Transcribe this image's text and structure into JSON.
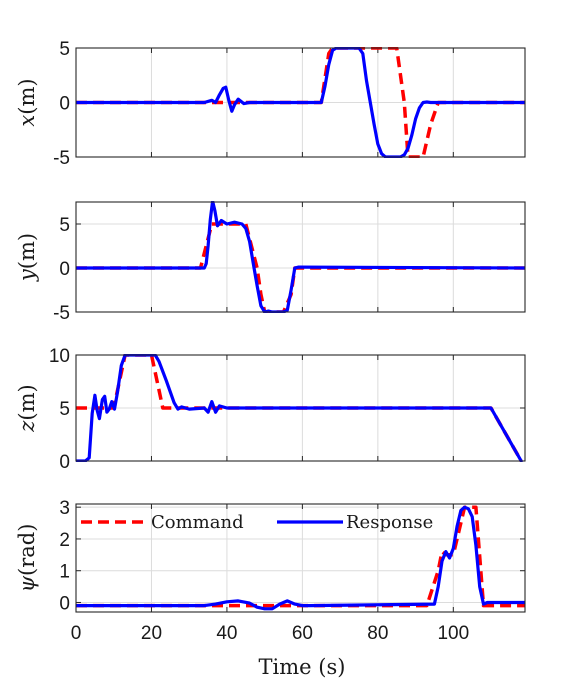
{
  "chart_data": [
    {
      "type": "line",
      "ylabel_var": "x",
      "ylabel_unit": "(m)",
      "xlim": [
        0,
        119
      ],
      "ylim": [
        -5,
        5
      ],
      "yticks": [
        -5,
        0,
        5
      ],
      "ytick_labels": [
        "-5",
        "0",
        "5"
      ],
      "xticks": [
        0,
        20,
        40,
        60,
        80,
        100
      ],
      "grid": true,
      "series": [
        {
          "name": "Command",
          "color": "#ff0000",
          "style": "dashed",
          "x": [
            0,
            65,
            67,
            68,
            85,
            87,
            88,
            92,
            94,
            96,
            119
          ],
          "y": [
            0,
            0,
            4.5,
            5,
            5,
            0,
            -5,
            -5,
            -2,
            0,
            0
          ]
        },
        {
          "name": "Response",
          "color": "#0000ff",
          "style": "solid",
          "x": [
            0,
            34,
            36,
            37,
            38,
            39,
            39.7,
            40.5,
            41.3,
            42,
            43,
            44.5,
            46,
            65,
            66,
            67,
            68,
            69,
            70,
            75,
            76,
            77,
            78,
            79,
            80,
            81,
            82,
            86,
            87,
            88,
            89,
            90,
            91,
            92,
            93,
            94,
            96,
            119
          ],
          "y": [
            0,
            0,
            0.2,
            0,
            0.7,
            1.3,
            1.4,
            0.2,
            -0.8,
            -0.2,
            0.3,
            -0.1,
            0,
            0,
            1.5,
            3.5,
            4.8,
            5,
            5,
            5,
            4.5,
            2,
            0,
            -2,
            -3.8,
            -4.7,
            -5,
            -5,
            -4.8,
            -4.2,
            -3,
            -1.5,
            -0.5,
            0,
            0.05,
            0,
            0,
            0
          ]
        }
      ]
    },
    {
      "type": "line",
      "ylabel_var": "y",
      "ylabel_unit": "(m)",
      "xlim": [
        0,
        119
      ],
      "ylim": [
        -5,
        7.5
      ],
      "yticks": [
        -5,
        0,
        5
      ],
      "ytick_labels": [
        "-5",
        "0",
        "5"
      ],
      "xticks": [
        0,
        20,
        40,
        60,
        80,
        100
      ],
      "grid": true,
      "series": [
        {
          "name": "Command",
          "color": "#ff0000",
          "style": "dashed",
          "x": [
            0,
            33,
            36,
            45,
            48,
            49,
            50,
            55,
            57,
            58,
            119
          ],
          "y": [
            0,
            0,
            5,
            5,
            0,
            -3,
            -5,
            -5,
            -3,
            0,
            0
          ]
        },
        {
          "name": "Response",
          "color": "#0000ff",
          "style": "solid",
          "x": [
            0,
            34,
            34.5,
            35,
            35.6,
            36.2,
            36.8,
            37.5,
            38.5,
            40,
            42,
            44,
            45,
            46,
            47,
            48,
            49,
            50,
            51,
            52,
            55,
            56,
            57,
            58,
            59,
            119
          ],
          "y": [
            0,
            0,
            0.5,
            2.5,
            5.5,
            7.6,
            6.5,
            4.8,
            5.4,
            5,
            5.2,
            5,
            4.5,
            3,
            0.5,
            -2,
            -4.3,
            -5,
            -4.9,
            -5,
            -5,
            -4.8,
            -2.5,
            0,
            0.1,
            0
          ]
        }
      ]
    },
    {
      "type": "line",
      "ylabel_var": "z",
      "ylabel_unit": "(m)",
      "xlim": [
        0,
        119
      ],
      "ylim": [
        0,
        10
      ],
      "yticks": [
        0,
        5,
        10
      ],
      "ytick_labels": [
        "0",
        "5",
        "10"
      ],
      "xticks": [
        0,
        20,
        40,
        60,
        80,
        100
      ],
      "grid": true,
      "series": [
        {
          "name": "Command",
          "color": "#ff0000",
          "style": "dashed",
          "x": [
            0,
            10,
            13,
            20,
            23,
            26,
            110,
            118
          ],
          "y": [
            5,
            5,
            10,
            10,
            5,
            5,
            5,
            0
          ]
        },
        {
          "name": "Response",
          "color": "#0000ff",
          "style": "solid",
          "x": [
            0,
            2.5,
            3.5,
            4.3,
            5,
            5.6,
            6.2,
            7,
            7.6,
            8.2,
            8.8,
            9.5,
            10.2,
            11,
            12,
            13,
            15,
            18,
            21,
            22,
            24,
            26,
            27,
            28,
            30,
            34,
            35,
            36,
            37,
            38,
            40,
            42,
            110,
            118
          ],
          "y": [
            0,
            0,
            0.3,
            4.5,
            6.2,
            4.8,
            4.0,
            5.8,
            6.1,
            4.6,
            4.9,
            5.6,
            4.9,
            6.5,
            9,
            10,
            10,
            10,
            10,
            9.4,
            7.5,
            5.5,
            4.9,
            5.1,
            4.9,
            5,
            4.6,
            5.6,
            4.6,
            5.2,
            5,
            5,
            5,
            0
          ]
        }
      ]
    },
    {
      "type": "line",
      "ylabel_var": "ψ",
      "ylabel_unit": "(rad)",
      "xlim": [
        0,
        119
      ],
      "ylim": [
        -0.3,
        3.1
      ],
      "yticks": [
        0,
        1,
        2,
        3
      ],
      "ytick_labels": [
        "0",
        "1",
        "2",
        "3"
      ],
      "xticks": [
        0,
        20,
        40,
        60,
        80,
        100
      ],
      "xtick_labels": [
        "0",
        "20",
        "40",
        "60",
        "80",
        "100"
      ],
      "xlabel": "Time (s)",
      "grid": true,
      "legend": {
        "position": "top",
        "entries": [
          "Command",
          "Response"
        ]
      },
      "series": [
        {
          "name": "Command",
          "color": "#ff0000",
          "style": "dashed",
          "x": [
            0,
            93,
            96,
            97,
            98,
            100,
            103,
            106,
            108,
            119
          ],
          "y": [
            -0.1,
            -0.1,
            1.0,
            1.6,
            1.5,
            1.5,
            3.0,
            3.0,
            -0.1,
            -0.1
          ]
        },
        {
          "name": "Response",
          "color": "#0000ff",
          "style": "solid",
          "x": [
            0,
            34,
            37,
            40,
            43,
            46,
            48,
            50,
            52,
            54,
            56,
            58,
            60,
            62,
            95,
            96,
            97,
            98,
            99,
            100,
            101,
            102,
            103,
            104,
            105,
            106,
            107,
            108,
            109,
            110,
            119
          ],
          "y": [
            -0.1,
            -0.1,
            -0.05,
            0.02,
            0.05,
            -0.02,
            -0.15,
            -0.2,
            -0.2,
            -0.05,
            0.05,
            -0.05,
            -0.1,
            -0.1,
            -0.05,
            0.5,
            1.3,
            1.6,
            1.4,
            1.7,
            2.4,
            2.9,
            3.0,
            2.95,
            2.7,
            1.8,
            0.5,
            -0.05,
            0,
            0,
            0
          ]
        }
      ]
    }
  ]
}
